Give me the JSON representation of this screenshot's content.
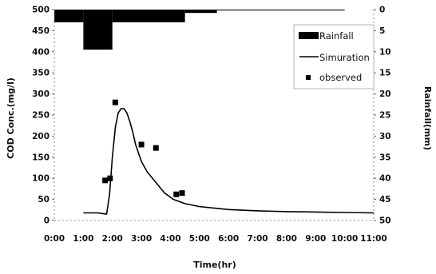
{
  "chart_data": {
    "type": "line",
    "xlabel": "Time(hr)",
    "ylabel": "COD Conc.(mg/l)",
    "y2label": "Rainfall(mm)",
    "x_ticks": [
      "0:00",
      "1:00",
      "2:00",
      "3:00",
      "4:00",
      "5:00",
      "6:00",
      "7:00",
      "8:00",
      "9:00",
      "10:00",
      "11:00"
    ],
    "y_ticks": [
      "0",
      "50",
      "100",
      "150",
      "200",
      "250",
      "300",
      "350",
      "400",
      "450",
      "500"
    ],
    "y2_ticks": [
      "0",
      "5",
      "10",
      "15",
      "20",
      "25",
      "30",
      "35",
      "40",
      "45",
      "50"
    ],
    "xlim": [
      0,
      11
    ],
    "ylim": [
      0,
      500
    ],
    "y2lim": [
      0,
      50
    ],
    "y2_inverted": true,
    "legend_position": "top-right",
    "series": [
      {
        "name": "Rainfall",
        "type": "bar",
        "axis": "right",
        "color": "#000000",
        "data": [
          {
            "x0": 0.0,
            "x1": 1.0,
            "y": 3.0
          },
          {
            "x0": 1.0,
            "x1": 2.0,
            "y": 9.5
          },
          {
            "x0": 2.0,
            "x1": 4.5,
            "y": 3.0
          },
          {
            "x0": 4.5,
            "x1": 5.6,
            "y": 0.8
          },
          {
            "x0": 5.6,
            "x1": 10.0,
            "y": 0.2
          }
        ]
      },
      {
        "name": "Simuration",
        "type": "line",
        "axis": "left",
        "color": "#000000",
        "x": [
          1.0,
          1.5,
          1.8,
          1.9,
          2.0,
          2.1,
          2.2,
          2.3,
          2.4,
          2.5,
          2.6,
          2.7,
          2.8,
          3.0,
          3.2,
          3.5,
          3.8,
          4.1,
          4.5,
          5.0,
          6.0,
          7.0,
          8.0,
          9.0,
          10.0,
          11.0
        ],
        "y": [
          18,
          18,
          15,
          60,
          150,
          220,
          255,
          265,
          265,
          255,
          235,
          210,
          180,
          140,
          115,
          90,
          65,
          50,
          40,
          33,
          26,
          23,
          21,
          20,
          19,
          18
        ]
      },
      {
        "name": "observed",
        "type": "scatter",
        "axis": "left",
        "color": "#000000",
        "x": [
          1.75,
          1.92,
          2.1,
          3.0,
          3.5,
          4.2,
          4.4
        ],
        "y": [
          95,
          100,
          280,
          180,
          172,
          62,
          65
        ]
      }
    ]
  }
}
